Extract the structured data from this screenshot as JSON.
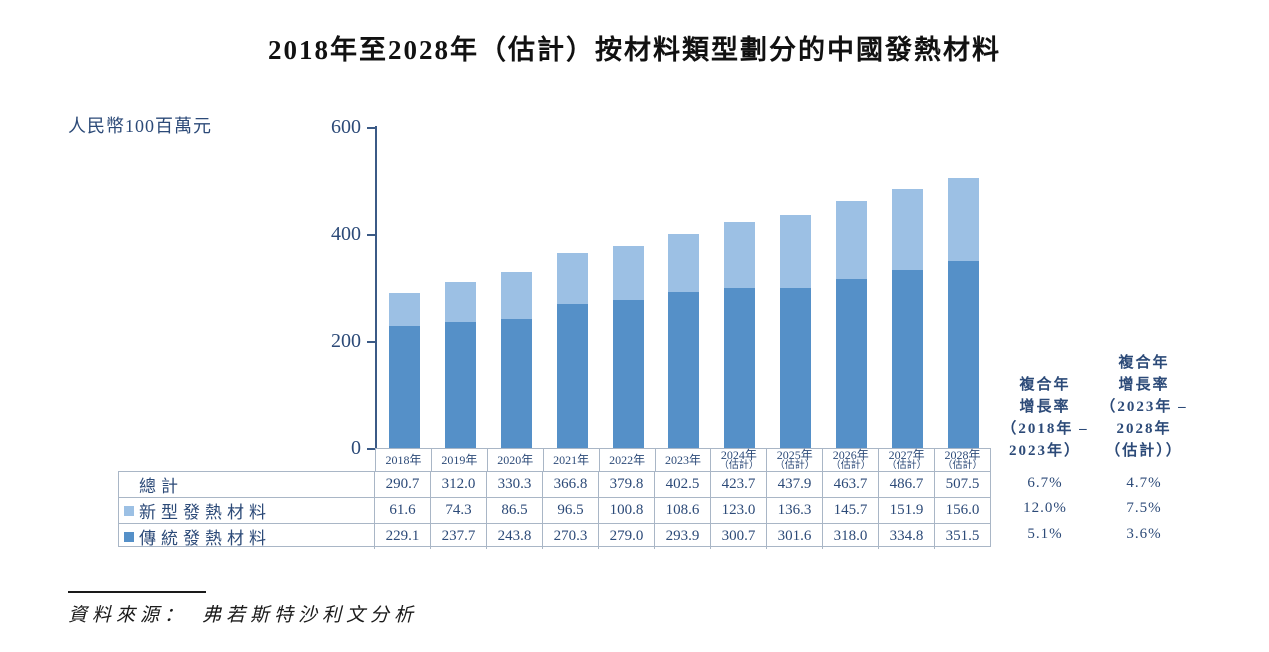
{
  "title": "2018年至2028年（估計）按材料類型劃分的中國發熱材料",
  "unit_label": "人民幣100百萬元",
  "source": {
    "label": "資料來源：",
    "text": "弗若斯特沙利文分析"
  },
  "colors": {
    "new_material": "#9cc0e4",
    "traditional_material": "#5590c8",
    "axis": "#3b5a86",
    "text_blue": "#2c4a78",
    "table_border": "#a9b6c6"
  },
  "chart_data": {
    "type": "bar",
    "stacked": true,
    "title": "2018年至2028年（估計）按材料類型劃分的中國發熱材料",
    "ylabel": "人民幣100百萬元",
    "ylim": [
      0,
      600
    ],
    "yticks": [
      0,
      200,
      400,
      600
    ],
    "grid": false,
    "legend_position": "table-row-labels",
    "categories": [
      "2018年",
      "2019年",
      "2020年",
      "2021年",
      "2022年",
      "2023年",
      "2024年\n（估計）",
      "2025年\n（估計）",
      "2026年\n（估計）",
      "2027年\n（估計）",
      "2028年\n（估計）"
    ],
    "series": [
      {
        "name": "新型發熱材料",
        "color": "#9cc0e4",
        "values": [
          61.6,
          74.3,
          86.5,
          96.5,
          100.8,
          108.6,
          123.0,
          136.3,
          145.7,
          151.9,
          156.0
        ]
      },
      {
        "name": "傳統發熱材料",
        "color": "#5590c8",
        "values": [
          229.1,
          237.7,
          243.8,
          270.3,
          279.0,
          293.9,
          300.7,
          301.6,
          318.0,
          334.8,
          351.5
        ]
      }
    ],
    "totals": [
      290.7,
      312.0,
      330.3,
      366.8,
      379.8,
      402.5,
      423.7,
      437.9,
      463.7,
      486.7,
      507.5
    ]
  },
  "table": {
    "rows": [
      {
        "label": "總計",
        "swatch": null,
        "values": [
          "290.7",
          "312.0",
          "330.3",
          "366.8",
          "379.8",
          "402.5",
          "423.7",
          "437.9",
          "463.7",
          "486.7",
          "507.5"
        ],
        "cagr_2018_2023": "6.7%",
        "cagr_2023_2028": "4.7%"
      },
      {
        "label": "新型發熱材料",
        "swatch": "#9cc0e4",
        "values": [
          "61.6",
          "74.3",
          "86.5",
          "96.5",
          "100.8",
          "108.6",
          "123.0",
          "136.3",
          "145.7",
          "151.9",
          "156.0"
        ],
        "cagr_2018_2023": "12.0%",
        "cagr_2023_2028": "7.5%"
      },
      {
        "label": "傳統發熱材料",
        "swatch": "#5590c8",
        "values": [
          "229.1",
          "237.7",
          "243.8",
          "270.3",
          "279.0",
          "293.9",
          "300.7",
          "301.6",
          "318.0",
          "334.8",
          "351.5"
        ],
        "cagr_2018_2023": "5.1%",
        "cagr_2023_2028": "3.6%"
      }
    ]
  },
  "cagr_headers": [
    {
      "lines": [
        "複合年",
        "增長率",
        "（2018年 –",
        "2023年）"
      ]
    },
    {
      "lines": [
        "複合年",
        "增長率",
        "（2023年 –",
        "2028年",
        "（估計））"
      ]
    }
  ]
}
